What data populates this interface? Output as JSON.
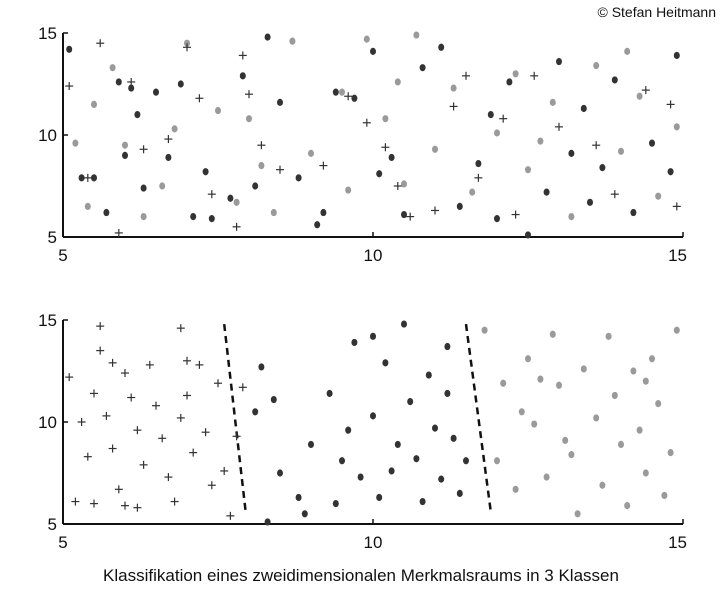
{
  "copyright": "© Stefan Heitmann",
  "caption": "Klassifikation eines zweidimensionalen Merkmalsraums in 3 Klassen",
  "colors": {
    "class_a": "#777777",
    "class_b": "#9a9a9a",
    "class_c": "#333333",
    "boundary": "#111111"
  },
  "chart_data": [
    {
      "type": "scatter",
      "xlim": [
        5,
        15
      ],
      "ylim": [
        5,
        15
      ],
      "xticks": [
        "5",
        "10",
        "15"
      ],
      "yticks": [
        "5",
        "10",
        "15"
      ],
      "grid": false,
      "series": [
        {
          "marker": "dot-dark",
          "points": [
            [
              5.1,
              14.2
            ],
            [
              5.3,
              7.9
            ],
            [
              5.5,
              7.9
            ],
            [
              5.7,
              6.2
            ],
            [
              5.9,
              12.6
            ],
            [
              6.0,
              9.0
            ],
            [
              6.1,
              12.3
            ],
            [
              6.2,
              11.0
            ],
            [
              6.3,
              7.4
            ],
            [
              6.5,
              12.1
            ],
            [
              6.9,
              12.5
            ],
            [
              7.1,
              6.0
            ],
            [
              7.3,
              8.2
            ],
            [
              7.4,
              5.9
            ],
            [
              7.9,
              12.9
            ],
            [
              8.1,
              7.5
            ],
            [
              8.3,
              14.8
            ],
            [
              8.5,
              11.6
            ],
            [
              8.8,
              7.9
            ],
            [
              9.1,
              5.6
            ],
            [
              9.4,
              12.1
            ],
            [
              9.7,
              11.8
            ],
            [
              10.0,
              14.1
            ],
            [
              10.3,
              8.9
            ],
            [
              10.5,
              6.1
            ],
            [
              10.8,
              13.3
            ],
            [
              11.1,
              14.3
            ],
            [
              11.4,
              6.5
            ],
            [
              11.7,
              8.6
            ],
            [
              12.0,
              5.9
            ],
            [
              12.2,
              12.6
            ],
            [
              12.5,
              5.1
            ],
            [
              12.8,
              7.2
            ],
            [
              13.0,
              13.6
            ],
            [
              13.2,
              9.1
            ],
            [
              13.4,
              11.3
            ],
            [
              13.7,
              8.4
            ],
            [
              13.9,
              12.7
            ],
            [
              14.2,
              6.2
            ],
            [
              14.5,
              9.6
            ],
            [
              14.8,
              8.2
            ],
            [
              14.9,
              13.9
            ],
            [
              9.2,
              6.2
            ],
            [
              10.1,
              8.1
            ],
            [
              13.5,
              6.7
            ],
            [
              11.9,
              11.0
            ],
            [
              6.7,
              8.9
            ],
            [
              7.7,
              6.9
            ]
          ]
        },
        {
          "marker": "dot-light",
          "points": [
            [
              5.2,
              9.6
            ],
            [
              5.4,
              6.5
            ],
            [
              5.5,
              11.5
            ],
            [
              5.8,
              13.3
            ],
            [
              6.0,
              9.5
            ],
            [
              6.3,
              6.0
            ],
            [
              6.8,
              10.3
            ],
            [
              7.0,
              14.5
            ],
            [
              7.5,
              11.2
            ],
            [
              7.8,
              6.7
            ],
            [
              8.0,
              10.8
            ],
            [
              8.4,
              6.2
            ],
            [
              8.7,
              14.6
            ],
            [
              9.0,
              9.1
            ],
            [
              9.5,
              12.1
            ],
            [
              9.9,
              14.7
            ],
            [
              10.2,
              10.8
            ],
            [
              10.5,
              7.6
            ],
            [
              10.7,
              14.9
            ],
            [
              11.0,
              9.3
            ],
            [
              11.3,
              12.3
            ],
            [
              11.6,
              7.2
            ],
            [
              12.0,
              10.1
            ],
            [
              12.3,
              13.0
            ],
            [
              12.5,
              8.3
            ],
            [
              12.9,
              11.6
            ],
            [
              13.2,
              6.0
            ],
            [
              13.6,
              13.4
            ],
            [
              14.0,
              9.2
            ],
            [
              14.3,
              11.9
            ],
            [
              14.6,
              7.0
            ],
            [
              14.9,
              10.4
            ],
            [
              6.6,
              7.5
            ],
            [
              8.2,
              8.5
            ],
            [
              10.4,
              12.6
            ],
            [
              12.7,
              9.7
            ],
            [
              14.1,
              14.1
            ],
            [
              9.6,
              7.3
            ]
          ]
        },
        {
          "marker": "plus",
          "points": [
            [
              5.1,
              12.4
            ],
            [
              5.4,
              7.9
            ],
            [
              5.6,
              14.5
            ],
            [
              5.9,
              5.2
            ],
            [
              6.1,
              12.6
            ],
            [
              6.3,
              9.3
            ],
            [
              7.0,
              14.3
            ],
            [
              7.2,
              11.8
            ],
            [
              7.4,
              7.1
            ],
            [
              7.8,
              5.5
            ],
            [
              8.0,
              12.0
            ],
            [
              8.2,
              9.5
            ],
            [
              8.5,
              8.3
            ],
            [
              9.2,
              8.5
            ],
            [
              9.6,
              11.9
            ],
            [
              9.9,
              10.6
            ],
            [
              10.2,
              9.4
            ],
            [
              10.4,
              7.5
            ],
            [
              10.6,
              6.0
            ],
            [
              11.0,
              6.3
            ],
            [
              11.3,
              11.4
            ],
            [
              11.5,
              12.9
            ],
            [
              11.7,
              7.9
            ],
            [
              12.1,
              10.8
            ],
            [
              12.3,
              6.1
            ],
            [
              12.6,
              12.9
            ],
            [
              13.0,
              10.4
            ],
            [
              13.6,
              9.5
            ],
            [
              13.9,
              7.1
            ],
            [
              14.4,
              12.2
            ],
            [
              14.8,
              11.5
            ],
            [
              14.9,
              6.5
            ],
            [
              6.7,
              9.8
            ],
            [
              7.9,
              13.9
            ]
          ]
        }
      ]
    },
    {
      "type": "scatter",
      "xlim": [
        5,
        15
      ],
      "ylim": [
        5,
        15
      ],
      "xticks": [
        "5",
        "10",
        "15"
      ],
      "yticks": [
        "5",
        "10",
        "15"
      ],
      "grid": false,
      "boundaries": [
        [
          [
            7.6,
            14.8
          ],
          [
            7.95,
            5.5
          ]
        ],
        [
          [
            11.5,
            14.8
          ],
          [
            11.9,
            5.6
          ]
        ]
      ],
      "series": [
        {
          "marker": "plus",
          "points": [
            [
              5.1,
              12.2
            ],
            [
              5.2,
              6.1
            ],
            [
              5.4,
              8.3
            ],
            [
              5.5,
              11.4
            ],
            [
              5.6,
              14.7
            ],
            [
              5.6,
              13.5
            ],
            [
              5.7,
              10.3
            ],
            [
              5.8,
              8.7
            ],
            [
              5.9,
              6.7
            ],
            [
              6.0,
              12.4
            ],
            [
              6.0,
              5.9
            ],
            [
              6.1,
              11.2
            ],
            [
              6.2,
              9.6
            ],
            [
              6.3,
              7.9
            ],
            [
              6.4,
              12.8
            ],
            [
              6.5,
              10.8
            ],
            [
              6.6,
              9.2
            ],
            [
              6.7,
              7.3
            ],
            [
              6.8,
              6.1
            ],
            [
              6.9,
              14.6
            ],
            [
              7.0,
              11.3
            ],
            [
              7.1,
              8.5
            ],
            [
              7.2,
              12.8
            ],
            [
              7.3,
              9.5
            ],
            [
              7.4,
              6.9
            ],
            [
              7.5,
              11.9
            ],
            [
              7.6,
              7.6
            ],
            [
              7.7,
              5.4
            ],
            [
              7.8,
              9.3
            ],
            [
              7.9,
              11.7
            ],
            [
              5.3,
              10.0
            ],
            [
              5.5,
              6.0
            ],
            [
              6.9,
              10.2
            ],
            [
              6.2,
              5.8
            ],
            [
              7.0,
              13.0
            ],
            [
              5.8,
              12.9
            ]
          ]
        },
        {
          "marker": "dot-dark",
          "points": [
            [
              8.1,
              10.5
            ],
            [
              8.2,
              12.7
            ],
            [
              8.4,
              11.1
            ],
            [
              8.5,
              7.5
            ],
            [
              8.8,
              6.3
            ],
            [
              9.0,
              8.9
            ],
            [
              9.3,
              11.4
            ],
            [
              9.5,
              8.1
            ],
            [
              9.7,
              13.9
            ],
            [
              9.8,
              7.3
            ],
            [
              10.0,
              10.3
            ],
            [
              10.1,
              6.3
            ],
            [
              10.2,
              12.9
            ],
            [
              10.4,
              8.9
            ],
            [
              10.5,
              14.8
            ],
            [
              10.6,
              11.0
            ],
            [
              10.7,
              8.2
            ],
            [
              10.8,
              6.1
            ],
            [
              10.9,
              12.3
            ],
            [
              11.0,
              9.7
            ],
            [
              11.1,
              7.2
            ],
            [
              11.2,
              13.7
            ],
            [
              11.3,
              9.2
            ],
            [
              11.4,
              6.5
            ],
            [
              8.3,
              5.1
            ],
            [
              8.9,
              5.5
            ],
            [
              9.4,
              6.0
            ],
            [
              10.3,
              7.6
            ],
            [
              11.5,
              8.1
            ],
            [
              10.0,
              14.2
            ],
            [
              9.6,
              9.6
            ],
            [
              11.2,
              11.4
            ]
          ]
        },
        {
          "marker": "dot-light",
          "points": [
            [
              11.8,
              14.5
            ],
            [
              12.0,
              8.1
            ],
            [
              12.1,
              11.9
            ],
            [
              12.3,
              6.7
            ],
            [
              12.5,
              13.1
            ],
            [
              12.6,
              9.9
            ],
            [
              12.8,
              7.3
            ],
            [
              12.9,
              14.3
            ],
            [
              13.0,
              11.8
            ],
            [
              13.2,
              8.4
            ],
            [
              13.3,
              5.5
            ],
            [
              13.4,
              12.6
            ],
            [
              13.6,
              10.2
            ],
            [
              13.7,
              6.9
            ],
            [
              13.8,
              14.2
            ],
            [
              13.9,
              11.3
            ],
            [
              14.0,
              8.9
            ],
            [
              14.1,
              5.9
            ],
            [
              14.2,
              12.5
            ],
            [
              14.3,
              9.6
            ],
            [
              14.4,
              7.5
            ],
            [
              14.5,
              13.1
            ],
            [
              14.6,
              10.9
            ],
            [
              14.7,
              6.4
            ],
            [
              14.8,
              8.5
            ],
            [
              14.9,
              14.5
            ],
            [
              12.4,
              10.5
            ],
            [
              13.1,
              9.1
            ],
            [
              14.4,
              12.0
            ],
            [
              12.7,
              12.1
            ]
          ]
        }
      ]
    }
  ]
}
